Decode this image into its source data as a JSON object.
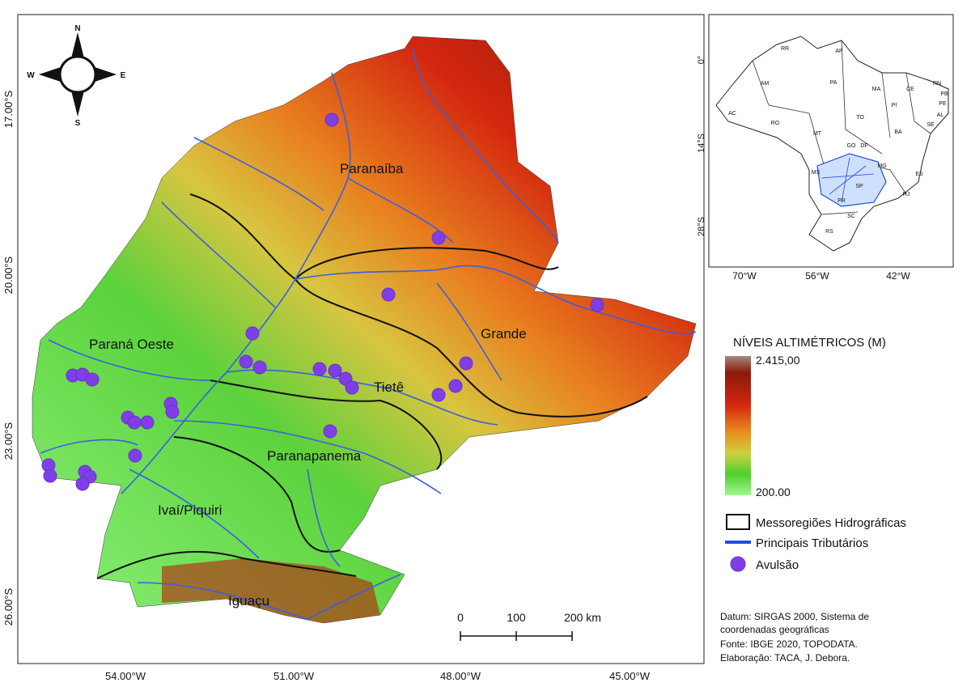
{
  "map": {
    "regions": [
      "Paranaíba",
      "Paraná Oeste",
      "Grande",
      "Tietê",
      "Paranapanema",
      "Ivaí/Piquiri",
      "Iguaçu"
    ],
    "lat_labels": [
      "17.00°S",
      "20.00°S",
      "23.00°S",
      "26.00°S"
    ],
    "lon_labels": [
      "54.00°W",
      "51.00°W",
      "48.00°W",
      "45.00°W"
    ],
    "compass": {
      "n": "N",
      "s": "S",
      "w": "W",
      "e": "E"
    },
    "scale": [
      "0",
      "100",
      "200 km"
    ]
  },
  "inset": {
    "states": [
      "RR",
      "AP",
      "AM",
      "PA",
      "MA",
      "CE",
      "RN",
      "PB",
      "PE",
      "PI",
      "AL",
      "AC",
      "RO",
      "TO",
      "SE",
      "BA",
      "MT",
      "GO",
      "DF",
      "MG",
      "MS",
      "ES",
      "SP",
      "RJ",
      "PR",
      "SC",
      "RS"
    ],
    "lat_labels": [
      "0°",
      "14°S",
      "28°S"
    ],
    "lon_labels": [
      "70°W",
      "56°W",
      "42°W"
    ]
  },
  "legend": {
    "title": "NÍVEIS ALTIMÉTRICOS (M)",
    "max": "2.415,00",
    "min": "200.00",
    "items": [
      "Messoregiões Hidrográficas",
      "Principais Tributários",
      "Avulsão"
    ]
  },
  "notes": [
    "Datum: SIRGAS 2000, Sistema de",
    "coordenadas geográficas",
    "Fonte: IBGE 2020, TOPODATA.",
    "Elaboração: TACA, J. Debora."
  ]
}
